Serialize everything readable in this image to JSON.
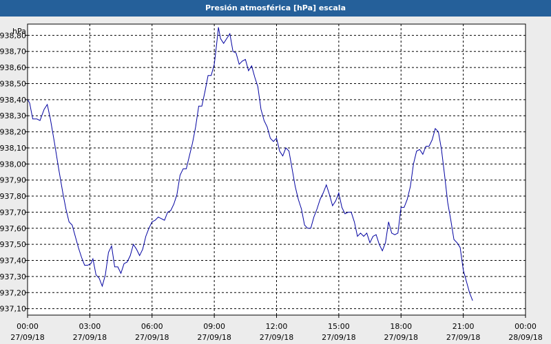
{
  "window": {
    "title": "Presión atmosférica [hPa] escala"
  },
  "colors": {
    "title_bar": "#25609a",
    "background": "#ececec",
    "line": "#0000a0",
    "grid": "#000000"
  },
  "chart_data": {
    "type": "line",
    "title": "Presión atmosférica [hPa] escala",
    "unit_label": "hPa",
    "grid": true,
    "grid_style": "dashed",
    "x_range_hours": [
      0,
      24
    ],
    "ylim": [
      937.06,
      938.87
    ],
    "y_ticks": [
      {
        "value": 937.1,
        "label": "937,10"
      },
      {
        "value": 937.2,
        "label": "937,20"
      },
      {
        "value": 937.3,
        "label": "937,30"
      },
      {
        "value": 937.4,
        "label": "937,40"
      },
      {
        "value": 937.5,
        "label": "937,50"
      },
      {
        "value": 937.6,
        "label": "937,60"
      },
      {
        "value": 937.7,
        "label": "937,70"
      },
      {
        "value": 937.8,
        "label": "937,80"
      },
      {
        "value": 937.9,
        "label": "937,90"
      },
      {
        "value": 938.0,
        "label": "938,00"
      },
      {
        "value": 938.1,
        "label": "938,10"
      },
      {
        "value": 938.2,
        "label": "938,20"
      },
      {
        "value": 938.3,
        "label": "938,30"
      },
      {
        "value": 938.4,
        "label": "938,40"
      },
      {
        "value": 938.5,
        "label": "938,50"
      },
      {
        "value": 938.6,
        "label": "938,60"
      },
      {
        "value": 938.7,
        "label": "938,70"
      },
      {
        "value": 938.8,
        "label": "938,80"
      }
    ],
    "x_ticks": [
      {
        "value": 0,
        "time": "00:00",
        "date": "27/09/18"
      },
      {
        "value": 3,
        "time": "03:00",
        "date": "27/09/18"
      },
      {
        "value": 6,
        "time": "06:00",
        "date": "27/09/18"
      },
      {
        "value": 9,
        "time": "09:00",
        "date": "27/09/18"
      },
      {
        "value": 12,
        "time": "12:00",
        "date": "27/09/18"
      },
      {
        "value": 15,
        "time": "15:00",
        "date": "27/09/18"
      },
      {
        "value": 18,
        "time": "18:00",
        "date": "27/09/18"
      },
      {
        "value": 21,
        "time": "21:00",
        "date": "27/09/18"
      },
      {
        "value": 24,
        "time": "00:00",
        "date": "28/09/18"
      }
    ],
    "series": [
      {
        "points": [
          [
            0.0,
            938.4
          ],
          [
            0.1,
            938.38
          ],
          [
            0.25,
            938.28
          ],
          [
            0.45,
            938.28
          ],
          [
            0.6,
            938.27
          ],
          [
            0.8,
            938.34
          ],
          [
            0.95,
            938.37
          ],
          [
            1.1,
            938.28
          ],
          [
            1.3,
            938.13
          ],
          [
            1.5,
            937.97
          ],
          [
            1.7,
            937.82
          ],
          [
            1.85,
            937.72
          ],
          [
            2.0,
            937.64
          ],
          [
            2.15,
            937.62
          ],
          [
            2.3,
            937.55
          ],
          [
            2.45,
            937.48
          ],
          [
            2.6,
            937.42
          ],
          [
            2.75,
            937.37
          ],
          [
            2.9,
            937.37
          ],
          [
            3.05,
            937.38
          ],
          [
            3.15,
            937.41
          ],
          [
            3.3,
            937.31
          ],
          [
            3.45,
            937.29
          ],
          [
            3.6,
            937.24
          ],
          [
            3.75,
            937.31
          ],
          [
            3.9,
            937.45
          ],
          [
            4.05,
            937.49
          ],
          [
            4.2,
            937.36
          ],
          [
            4.35,
            937.36
          ],
          [
            4.5,
            937.32
          ],
          [
            4.65,
            937.38
          ],
          [
            4.8,
            937.39
          ],
          [
            4.95,
            937.43
          ],
          [
            5.1,
            937.5
          ],
          [
            5.25,
            937.47
          ],
          [
            5.4,
            937.43
          ],
          [
            5.55,
            937.47
          ],
          [
            5.7,
            937.55
          ],
          [
            5.85,
            937.6
          ],
          [
            6.0,
            937.64
          ],
          [
            6.15,
            937.65
          ],
          [
            6.3,
            937.67
          ],
          [
            6.45,
            937.66
          ],
          [
            6.6,
            937.65
          ],
          [
            6.75,
            937.7
          ],
          [
            6.9,
            937.71
          ],
          [
            7.05,
            937.75
          ],
          [
            7.2,
            937.81
          ],
          [
            7.35,
            937.93
          ],
          [
            7.5,
            937.97
          ],
          [
            7.65,
            937.97
          ],
          [
            7.8,
            938.05
          ],
          [
            7.95,
            938.13
          ],
          [
            8.1,
            938.23
          ],
          [
            8.25,
            938.36
          ],
          [
            8.4,
            938.36
          ],
          [
            8.55,
            938.45
          ],
          [
            8.7,
            938.55
          ],
          [
            8.85,
            938.55
          ],
          [
            9.0,
            938.62
          ],
          [
            9.1,
            938.73
          ],
          [
            9.2,
            938.85
          ],
          [
            9.3,
            938.78
          ],
          [
            9.45,
            938.75
          ],
          [
            9.6,
            938.78
          ],
          [
            9.75,
            938.81
          ],
          [
            9.9,
            938.7
          ],
          [
            10.05,
            938.69
          ],
          [
            10.2,
            938.62
          ],
          [
            10.35,
            938.64
          ],
          [
            10.5,
            938.65
          ],
          [
            10.65,
            938.58
          ],
          [
            10.8,
            938.61
          ],
          [
            10.95,
            938.54
          ],
          [
            11.1,
            938.48
          ],
          [
            11.25,
            938.34
          ],
          [
            11.4,
            938.27
          ],
          [
            11.55,
            938.23
          ],
          [
            11.7,
            938.16
          ],
          [
            11.85,
            938.14
          ],
          [
            12.0,
            938.16
          ],
          [
            12.15,
            938.08
          ],
          [
            12.3,
            938.05
          ],
          [
            12.45,
            938.1
          ],
          [
            12.6,
            938.08
          ],
          [
            12.75,
            937.97
          ],
          [
            12.9,
            937.86
          ],
          [
            13.05,
            937.78
          ],
          [
            13.2,
            937.72
          ],
          [
            13.35,
            937.62
          ],
          [
            13.5,
            937.6
          ],
          [
            13.65,
            937.6
          ],
          [
            13.8,
            937.67
          ],
          [
            13.95,
            937.72
          ],
          [
            14.1,
            937.78
          ],
          [
            14.25,
            937.82
          ],
          [
            14.4,
            937.87
          ],
          [
            14.55,
            937.81
          ],
          [
            14.7,
            937.74
          ],
          [
            14.85,
            937.77
          ],
          [
            15.0,
            937.82
          ],
          [
            15.15,
            937.73
          ],
          [
            15.3,
            937.69
          ],
          [
            15.45,
            937.7
          ],
          [
            15.6,
            937.7
          ],
          [
            15.75,
            937.64
          ],
          [
            15.9,
            937.55
          ],
          [
            16.05,
            937.57
          ],
          [
            16.2,
            937.55
          ],
          [
            16.35,
            937.57
          ],
          [
            16.5,
            937.51
          ],
          [
            16.65,
            937.55
          ],
          [
            16.8,
            937.56
          ],
          [
            16.95,
            937.5
          ],
          [
            17.1,
            937.46
          ],
          [
            17.25,
            937.51
          ],
          [
            17.4,
            937.64
          ],
          [
            17.55,
            937.57
          ],
          [
            17.7,
            937.56
          ],
          [
            17.85,
            937.57
          ],
          [
            18.0,
            937.73
          ],
          [
            18.15,
            937.73
          ],
          [
            18.3,
            937.78
          ],
          [
            18.45,
            937.86
          ],
          [
            18.6,
            938.0
          ],
          [
            18.75,
            938.08
          ],
          [
            18.9,
            938.09
          ],
          [
            19.05,
            938.06
          ],
          [
            19.2,
            938.11
          ],
          [
            19.35,
            938.11
          ],
          [
            19.5,
            938.15
          ],
          [
            19.65,
            938.22
          ],
          [
            19.8,
            938.2
          ],
          [
            19.95,
            938.09
          ],
          [
            20.1,
            937.93
          ],
          [
            20.25,
            937.76
          ],
          [
            20.4,
            937.65
          ],
          [
            20.55,
            937.53
          ],
          [
            20.7,
            937.51
          ],
          [
            20.85,
            937.48
          ],
          [
            21.0,
            937.34
          ],
          [
            21.15,
            937.27
          ],
          [
            21.3,
            937.2
          ],
          [
            21.45,
            937.15
          ]
        ]
      }
    ]
  }
}
